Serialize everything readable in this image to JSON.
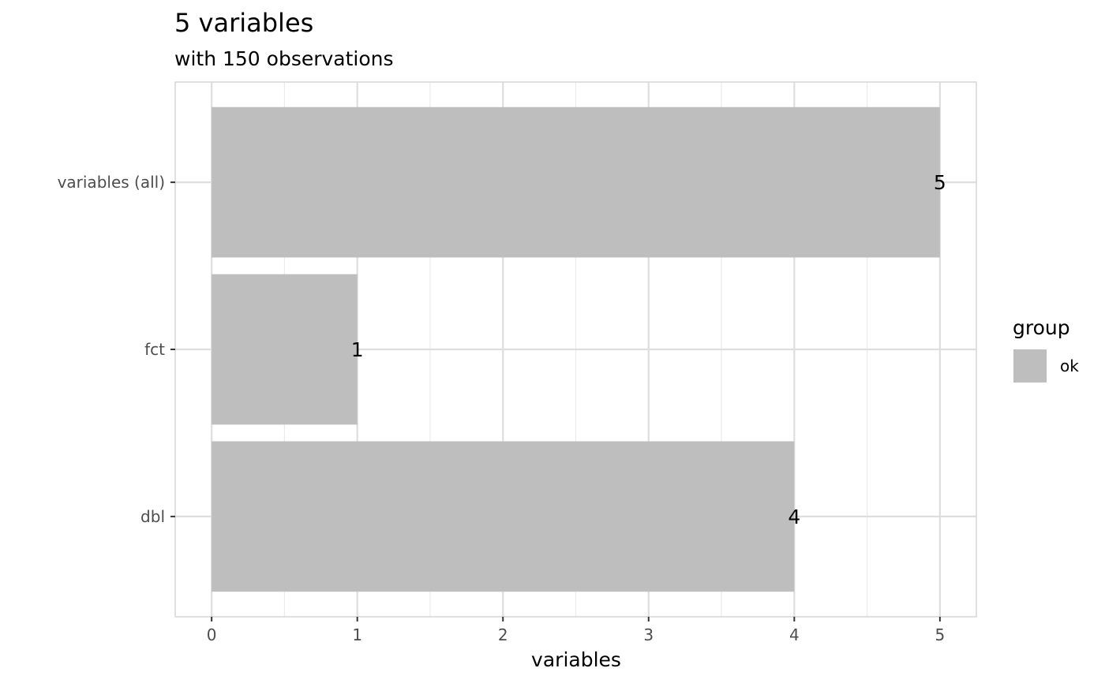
{
  "chart_data": {
    "type": "bar",
    "orientation": "horizontal",
    "title": "5 variables",
    "subtitle": "with 150 observations",
    "xlabel": "variables",
    "ylabel": "",
    "categories": [
      "variables (all)",
      "fct",
      "dbl"
    ],
    "series": [
      {
        "name": "ok",
        "values": [
          5,
          1,
          4
        ],
        "color": "#bebebe"
      }
    ],
    "data_labels": [
      "5",
      "1",
      "4"
    ],
    "xlim": [
      -0.25,
      5.25
    ],
    "xticks": [
      0,
      1,
      2,
      3,
      4,
      5
    ],
    "xtick_labels": [
      "0",
      "1",
      "2",
      "3",
      "4",
      "5"
    ],
    "grid": true,
    "legend": {
      "title": "group",
      "position": "right",
      "entries": [
        {
          "label": "ok",
          "color": "#bebebe"
        }
      ]
    },
    "colors": {
      "panel_border": "#d9d9d9",
      "grid_major": "#dedede",
      "grid_minor": "#ebebeb",
      "tick_text": "#4d4d4d",
      "axis_ticks": "#333333"
    }
  }
}
